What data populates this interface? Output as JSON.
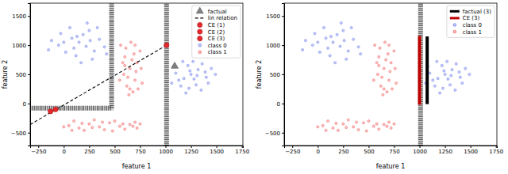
{
  "chart_data": [
    {
      "type": "scatter",
      "x_label": "feature 1",
      "y_label": "feature 2",
      "xlim": [
        -330,
        1760
      ],
      "ylim": [
        -720,
        1720
      ],
      "xticks": [
        {
          "value": -250,
          "label": "−250"
        },
        0,
        250,
        500,
        750,
        1000,
        1250,
        1500,
        1750
      ],
      "yticks": [
        {
          "value": -500,
          "label": "−500"
        },
        0,
        500,
        1000,
        1500
      ],
      "legend": "upper right",
      "boundaries": [
        {
          "x": [
            -330,
            470,
            470
          ],
          "y": [
            -80,
            -80,
            1720
          ]
        },
        {
          "x": [
            1010,
            1010
          ],
          "y": [
            -720,
            1720
          ]
        }
      ],
      "series": [
        {
          "name": "factual",
          "type": "scatter",
          "marker": "triangle",
          "color": "#808080",
          "x": [
            1090
          ],
          "values": [
            640
          ]
        },
        {
          "name": "lin relation",
          "type": "line",
          "line_style": "dashed",
          "color": "#000000",
          "x": [
            -330,
            1030
          ],
          "values": [
            -360,
            1020
          ]
        },
        {
          "name": "CE (1)",
          "type": "scatter",
          "marker": "circle",
          "color": "#e8282b",
          "x": [
            -130
          ],
          "values": [
            -135
          ]
        },
        {
          "name": "CE (2)",
          "type": "scatter",
          "marker": "circle",
          "color": "#e8282b",
          "x": [
            -80
          ],
          "values": [
            -100
          ]
        },
        {
          "name": "CE (3)",
          "type": "scatter",
          "marker": "circle",
          "color": "#e8282b",
          "x": [
            1010
          ],
          "values": [
            1000
          ]
        },
        {
          "name": "class 0",
          "type": "scatter",
          "marker": "circle",
          "color": "#5b6ee8",
          "x": [
            150,
            220,
            80,
            300,
            -50,
            250,
            120,
            350,
            20,
            190,
            -120,
            400,
            280,
            60,
            -30,
            330,
            100,
            230,
            -150,
            170,
            420,
            0,
            260,
            130,
            1250,
            1180,
            1320,
            1100,
            1400,
            1220,
            1300,
            1150,
            1450,
            1270,
            1080,
            1350,
            1200,
            1420,
            1130,
            1280,
            1360,
            1060,
            1490,
            1240,
            1170,
            1310,
            1230,
            1390
          ],
          "values": [
            1050,
            980,
            1120,
            900,
            1000,
            1250,
            820,
            1100,
            880,
            1180,
            1080,
            970,
            760,
            1300,
            1200,
            1300,
            950,
            1380,
            920,
            700,
            850,
            1050,
            1080,
            1150,
            500,
            430,
            580,
            520,
            450,
            650,
            320,
            300,
            600,
            720,
            640,
            230,
            180,
            350,
            400,
            420,
            680,
            350,
            500,
            560,
            720,
            480,
            260,
            540
          ]
        },
        {
          "name": "class 1",
          "type": "scatter",
          "marker": "circle",
          "color": "#f05050",
          "x": [
            650,
            600,
            700,
            560,
            720,
            680,
            620,
            750,
            590,
            660,
            710,
            640,
            580,
            770,
            690,
            610,
            730,
            550,
            670,
            630,
            760,
            700,
            600,
            650,
            50,
            150,
            250,
            350,
            450,
            550,
            650,
            720,
            100,
            200,
            300,
            400,
            500,
            600,
            700,
            0,
            80,
            180,
            280,
            380,
            480,
            580,
            680,
            750
          ],
          "values": [
            600,
            800,
            400,
            1000,
            700,
            200,
            300,
            900,
            500,
            1050,
            550,
            150,
            700,
            350,
            850,
            950,
            250,
            400,
            750,
            450,
            600,
            1000,
            650,
            250,
            -380,
            -420,
            -350,
            -400,
            -330,
            -390,
            -360,
            -420,
            -300,
            -460,
            -280,
            -450,
            -300,
            -440,
            -320,
            -400,
            -460,
            -340,
            -410,
            -320,
            -470,
            -350,
            -390,
            -350
          ]
        }
      ]
    },
    {
      "type": "scatter",
      "x_label": "feature 1",
      "y_label": "feature 2",
      "xlim": [
        -330,
        1760
      ],
      "ylim": [
        -720,
        1720
      ],
      "xticks": [
        {
          "value": -250,
          "label": "−250"
        },
        0,
        250,
        500,
        750,
        1000,
        1250,
        1500,
        1750
      ],
      "yticks": [
        {
          "value": -500,
          "label": "−500"
        },
        0,
        500,
        1000,
        1500
      ],
      "legend": "upper right",
      "boundaries": [
        {
          "x": [
            1010,
            1010
          ],
          "y": [
            -720,
            1720
          ]
        }
      ],
      "series": [
        {
          "name": "factual (3)",
          "type": "line",
          "line_style": "solid",
          "color": "#000000",
          "x": [
            1075,
            1075
          ],
          "values": [
            -10,
            1150
          ]
        },
        {
          "name": "CE (3)",
          "type": "line",
          "line_style": "solid",
          "color": "#c00000",
          "x": [
            1000,
            1000
          ],
          "values": [
            -20,
            1160
          ]
        },
        {
          "name": "class 0",
          "type": "scatter",
          "marker": "circle",
          "color": "#5b6ee8",
          "x": [
            150,
            220,
            80,
            300,
            -50,
            250,
            120,
            350,
            20,
            190,
            -120,
            400,
            280,
            60,
            -30,
            330,
            100,
            230,
            -150,
            170,
            420,
            0,
            260,
            130,
            1250,
            1180,
            1320,
            1100,
            1400,
            1220,
            1300,
            1150,
            1450,
            1270,
            1080,
            1350,
            1200,
            1420,
            1130,
            1280,
            1360,
            1060,
            1490,
            1240,
            1170,
            1310,
            1230,
            1390
          ],
          "values": [
            1050,
            980,
            1120,
            900,
            1000,
            1250,
            820,
            1100,
            880,
            1180,
            1080,
            970,
            760,
            1300,
            1200,
            1300,
            950,
            1380,
            920,
            700,
            850,
            1050,
            1080,
            1150,
            500,
            430,
            580,
            520,
            450,
            650,
            320,
            300,
            600,
            720,
            640,
            230,
            180,
            350,
            400,
            420,
            680,
            350,
            500,
            560,
            720,
            480,
            260,
            540
          ]
        },
        {
          "name": "class 1",
          "type": "scatter",
          "marker": "circle",
          "color": "#f05050",
          "x": [
            650,
            600,
            700,
            560,
            720,
            680,
            620,
            750,
            590,
            660,
            710,
            640,
            580,
            770,
            690,
            610,
            730,
            550,
            670,
            630,
            760,
            700,
            600,
            650,
            50,
            150,
            250,
            350,
            450,
            550,
            650,
            720,
            100,
            200,
            300,
            400,
            500,
            600,
            700,
            0,
            80,
            180,
            280,
            380,
            480,
            580,
            680,
            750
          ],
          "values": [
            600,
            800,
            400,
            1000,
            700,
            200,
            300,
            900,
            500,
            1050,
            550,
            150,
            700,
            350,
            850,
            950,
            250,
            400,
            750,
            450,
            600,
            1000,
            650,
            250,
            -380,
            -420,
            -350,
            -400,
            -330,
            -390,
            -360,
            -420,
            -300,
            -460,
            -280,
            -450,
            -300,
            -440,
            -320,
            -400,
            -460,
            -340,
            -410,
            -320,
            -470,
            -350,
            -390,
            -350
          ]
        }
      ]
    }
  ]
}
